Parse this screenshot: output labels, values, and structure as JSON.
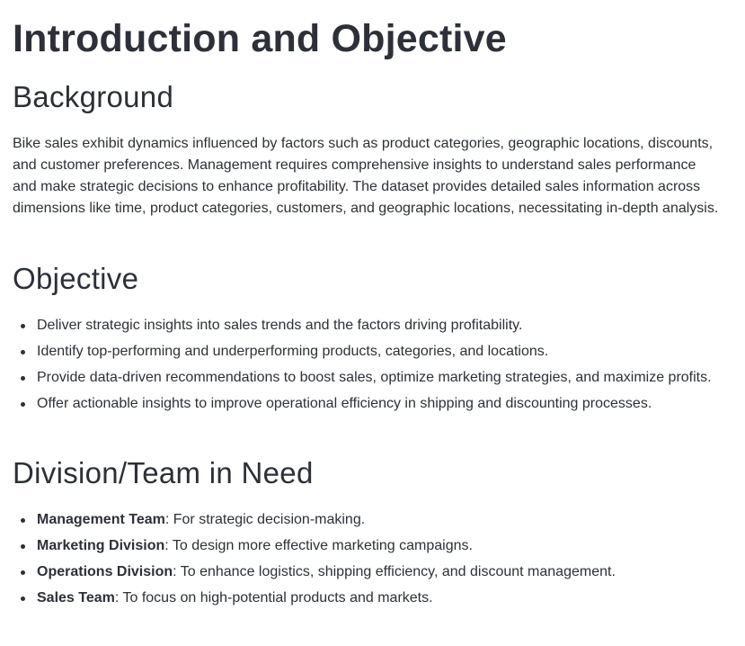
{
  "title": "Introduction and Objective",
  "background": {
    "heading": "Background",
    "paragraph": "Bike sales exhibit dynamics influenced by factors such as product categories, geographic locations, discounts, and customer preferences. Management requires comprehensive insights to understand sales performance and make strategic decisions to enhance profitability. The dataset provides detailed sales information across dimensions like time, product categories, customers, and geographic locations, necessitating in-depth analysis."
  },
  "objective": {
    "heading": "Objective",
    "items": [
      "Deliver strategic insights into sales trends and the factors driving profitability.",
      "Identify top-performing and underperforming products, categories, and locations.",
      "Provide data-driven recommendations to boost sales, optimize marketing strategies, and maximize profits.",
      "Offer actionable insights to improve operational efficiency in shipping and discounting processes."
    ]
  },
  "division": {
    "heading": "Division/Team in Need",
    "items": [
      {
        "name": "Management Team",
        "desc": ": For strategic decision-making."
      },
      {
        "name": "Marketing Division",
        "desc": ": To design more effective marketing campaigns."
      },
      {
        "name": "Operations Division",
        "desc": ": To enhance logistics, shipping efficiency, and discount management."
      },
      {
        "name": "Sales Team",
        "desc": ": To focus on high-potential products and markets."
      }
    ]
  }
}
